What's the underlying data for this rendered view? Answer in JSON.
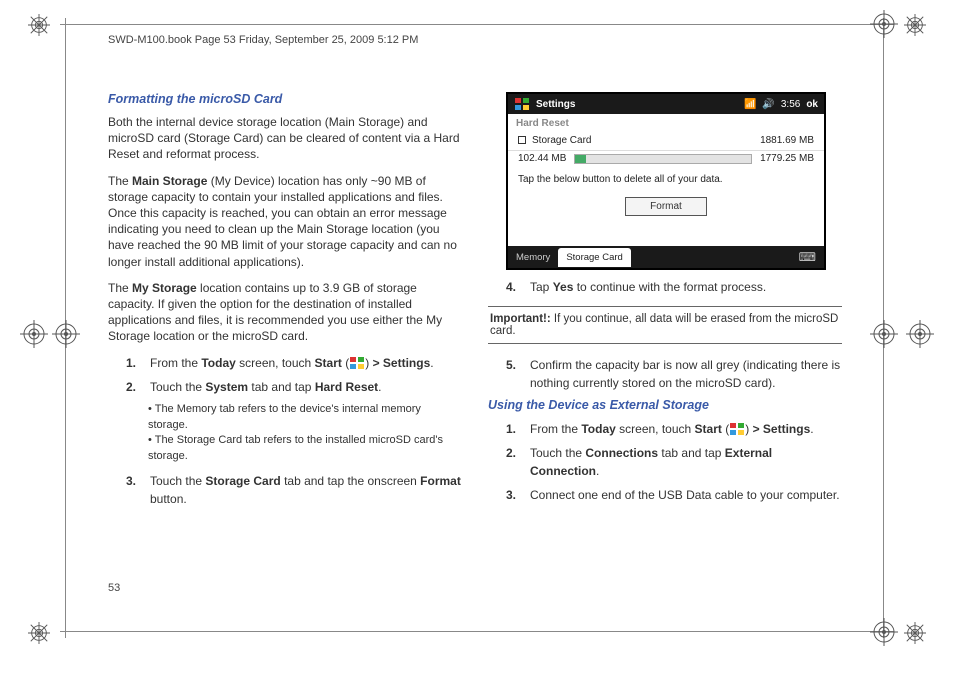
{
  "header": "SWD-M100.book  Page 53  Friday, September 25, 2009  5:12 PM",
  "page_number": "53",
  "left": {
    "section_title": "Formatting the microSD Card",
    "p1": "Both the internal device storage location (Main Storage) and microSD card (Storage Card) can be cleared of content via a Hard Reset and reformat process.",
    "p2_pre": "The ",
    "p2_b": "Main Storage",
    "p2_post": " (My Device) location has only ~90 MB of storage capacity to contain your installed applications and files. Once this capacity is reached, you can obtain an error message indicating you need to clean up the Main Storage location (you have reached the 90 MB limit of your storage capacity and can no longer install additional applications).",
    "p3_pre": "The ",
    "p3_b": "My Storage",
    "p3_post": " location contains up to 3.9 GB of storage capacity. If given the option for the destination of installed applications and files, it is recommended you use either the My Storage location or the microSD card.",
    "li1_a": "From the ",
    "li1_b1": "Today",
    "li1_mid": " screen, touch ",
    "li1_b2": "Start",
    "li1_paren_open": " (",
    "li1_paren_close": ") ",
    "li1_b3": "> Settings",
    "li1_end": ".",
    "li2_a": "Touch the ",
    "li2_b1": "System",
    "li2_mid": " tab and tap ",
    "li2_b2": "Hard Reset",
    "li2_end": ".",
    "bul1": "The Memory tab refers to the device's internal memory storage.",
    "bul2": "The Storage Card tab refers to the installed microSD card's storage.",
    "li3_a": "Touch the ",
    "li3_b1": "Storage Card",
    "li3_mid": " tab and tap the onscreen ",
    "li3_b2": "Format",
    "li3_end": " button."
  },
  "screenshot": {
    "title": "Settings",
    "time": "3:56",
    "ok": "ok",
    "section": "Hard Reset",
    "row1_label": "Storage Card",
    "row1_val": "1881.69 MB",
    "bar_left": "102.44 MB",
    "bar_right": "1779.25 MB",
    "bar_fill_pct": 6,
    "msg": "Tap the below button to delete all of your data.",
    "btn": "Format",
    "tab1": "Memory",
    "tab2": "Storage Card"
  },
  "right": {
    "li4_a": "Tap ",
    "li4_b": "Yes",
    "li4_end": " to continue with the format process.",
    "important_b": "Important!:",
    "important_t": " If you continue, all data will be erased from the microSD card.",
    "li5": "Confirm the capacity bar is now all grey (indicating there is nothing currently stored on the microSD card).",
    "section2": "Using the Device as External Storage",
    "s2_li1_a": "From the ",
    "s2_li1_b1": "Today",
    "s2_li1_mid": " screen, touch ",
    "s2_li1_b2": "Start",
    "s2_li1_paren_open": " (",
    "s2_li1_paren_close": ") ",
    "s2_li1_b3": "> Settings",
    "s2_li1_end": ".",
    "s2_li2_a": "Touch the ",
    "s2_li2_b1": "Connections",
    "s2_li2_mid": " tab and tap ",
    "s2_li2_b2": "External Connection",
    "s2_li2_end": ".",
    "s2_li3": "Connect one end of the USB Data cable to your computer."
  }
}
